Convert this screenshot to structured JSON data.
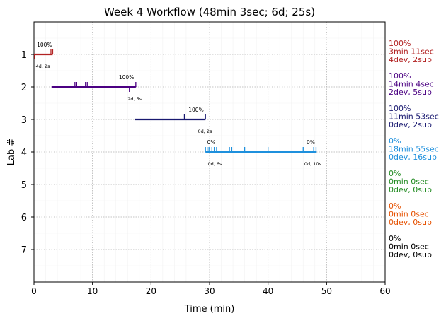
{
  "chart_data": {
    "type": "timeline",
    "title": "Week 4 Workflow (48min 3sec; 6d; 25s)",
    "xlabel": "Time (min)",
    "ylabel": "Lab #",
    "xlim": [
      0,
      60
    ],
    "xticks": [
      0,
      10,
      20,
      30,
      40,
      50,
      60
    ],
    "ylim": [
      8,
      0
    ],
    "grid": true,
    "labs": [
      {
        "label": "1",
        "color": "#b22222",
        "start": 0,
        "end": 3.2,
        "pct_start": "100%",
        "pct_start_x": 1.8,
        "dev_sub_marks": [
          {
            "x": 0.3,
            "text": "4d, 2s"
          }
        ],
        "submit_ticks": [
          2.9,
          3.2
        ],
        "dev_ticks": [
          0.1
        ],
        "summary": [
          "100%",
          "3min 11sec",
          "4dev, 2sub"
        ]
      },
      {
        "label": "2",
        "color": "#4b0082",
        "start": 3.0,
        "end": 17.4,
        "pct_start": "100%",
        "pct_start_x": 15.8,
        "dev_sub_marks": [
          {
            "x": 16.0,
            "text": "2d, 5s"
          }
        ],
        "submit_ticks": [
          7.0,
          7.3,
          8.8,
          9.1,
          17.4
        ],
        "dev_ticks": [
          16.3
        ],
        "summary": [
          "100%",
          "14min 4sec",
          "2dev, 5sub"
        ]
      },
      {
        "label": "3",
        "color": "#191970",
        "start": 17.2,
        "end": 29.3,
        "pct_start": "100%",
        "pct_start_x": 27.7,
        "dev_sub_marks": [
          {
            "x": 28.0,
            "text": "0d, 2s"
          }
        ],
        "submit_ticks": [
          25.7,
          29.3
        ],
        "dev_ticks": [],
        "summary": [
          "100%",
          "11min 53sec",
          "0dev, 2sub"
        ]
      },
      {
        "label": "4",
        "color": "#1e90dd",
        "start": 29.3,
        "end": 48.3,
        "pct_start": "0%",
        "pct_start_x": 30.3,
        "pct_end": "0%",
        "pct_end_x": 47.3,
        "dev_sub_marks": [
          {
            "x": 29.7,
            "text": "0d, 6s"
          },
          {
            "x": 46.2,
            "text": "0d, 10s"
          }
        ],
        "submit_ticks": [
          29.3,
          29.6,
          29.9,
          30.4,
          30.8,
          31.2,
          33.4,
          33.8,
          36.0,
          40.0,
          46.0,
          47.8,
          48.2
        ],
        "dev_ticks": [],
        "summary": [
          "0%",
          "18min 55sec",
          "0dev, 16sub"
        ]
      },
      {
        "label": "5",
        "color": "#228b22",
        "summary": [
          "0%",
          "0min 0sec",
          "0dev, 0sub"
        ]
      },
      {
        "label": "6",
        "color": "#e65100",
        "summary": [
          "0%",
          "0min 0sec",
          "0dev, 0sub"
        ]
      },
      {
        "label": "7",
        "color": "#000000",
        "summary": [
          "0%",
          "0min 0sec",
          "0dev, 0sub"
        ]
      }
    ]
  }
}
